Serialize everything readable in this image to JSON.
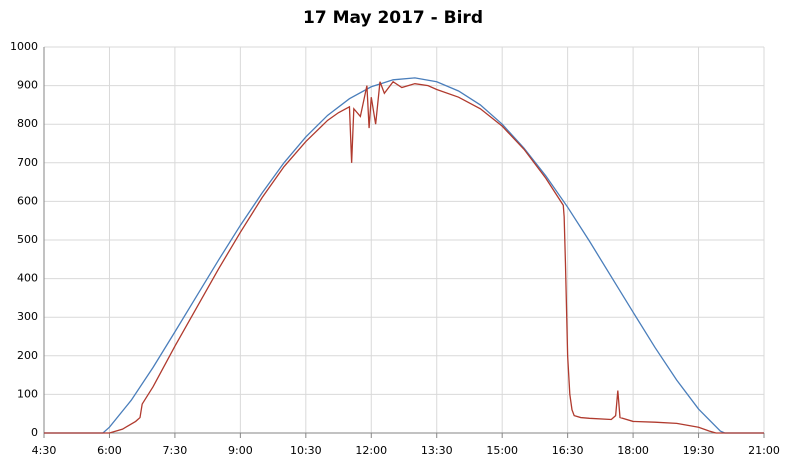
{
  "chart_data": {
    "type": "line",
    "title": "17 May 2017 - Bird",
    "series": [
      {
        "color": "#4a7ebb",
        "x": [
          4.5,
          5.5,
          5.85,
          6.0,
          6.5,
          7.0,
          7.5,
          8.0,
          8.5,
          9.0,
          9.5,
          10.0,
          10.5,
          11.0,
          11.5,
          12.0,
          12.5,
          13.0,
          13.5,
          14.0,
          14.5,
          15.0,
          15.5,
          16.0,
          16.5,
          17.0,
          17.5,
          18.0,
          18.5,
          19.0,
          19.5,
          20.0,
          20.1,
          21.0
        ],
        "values": [
          0,
          0,
          0,
          15,
          85,
          170,
          262,
          355,
          448,
          538,
          622,
          700,
          767,
          823,
          866,
          897,
          915,
          920,
          910,
          886,
          850,
          800,
          738,
          666,
          585,
          497,
          405,
          313,
          222,
          137,
          62,
          5,
          0,
          0
        ]
      },
      {
        "color": "#b03a2e",
        "x": [
          4.5,
          6.0,
          6.3,
          6.6,
          6.7,
          6.75,
          7.0,
          7.5,
          8.0,
          8.5,
          9.0,
          9.5,
          10.0,
          10.5,
          11.0,
          11.25,
          11.5,
          11.55,
          11.6,
          11.75,
          11.9,
          11.95,
          12.0,
          12.1,
          12.2,
          12.3,
          12.5,
          12.7,
          13.0,
          13.3,
          13.5,
          14.0,
          14.5,
          15.0,
          15.5,
          16.0,
          16.4,
          16.42,
          16.45,
          16.5,
          16.55,
          16.6,
          16.65,
          16.8,
          17.0,
          17.5,
          17.6,
          17.65,
          17.7,
          18.0,
          18.5,
          19.0,
          19.5,
          19.75,
          19.9,
          21.0
        ],
        "values": [
          0,
          0,
          10,
          30,
          40,
          75,
          120,
          225,
          325,
          425,
          520,
          610,
          690,
          755,
          810,
          830,
          845,
          700,
          840,
          820,
          900,
          790,
          870,
          800,
          910,
          880,
          910,
          895,
          905,
          900,
          890,
          870,
          840,
          795,
          735,
          660,
          590,
          560,
          440,
          200,
          100,
          60,
          45,
          40,
          38,
          35,
          45,
          110,
          40,
          30,
          28,
          25,
          15,
          5,
          0,
          0
        ]
      }
    ],
    "xlim": [
      4.5,
      21
    ],
    "xticks": [
      {
        "value": 4.5,
        "label": "4:30"
      },
      {
        "value": 6,
        "label": "6:00"
      },
      {
        "value": 7.5,
        "label": "7:30"
      },
      {
        "value": 9,
        "label": "9:00"
      },
      {
        "value": 10.5,
        "label": "10:30"
      },
      {
        "value": 12,
        "label": "12:00"
      },
      {
        "value": 13.5,
        "label": "13:30"
      },
      {
        "value": 15,
        "label": "15:00"
      },
      {
        "value": 16.5,
        "label": "16:30"
      },
      {
        "value": 18,
        "label": "18:00"
      },
      {
        "value": 19.5,
        "label": "19:30"
      },
      {
        "value": 21,
        "label": "21:00"
      }
    ],
    "ylim": [
      0,
      1000
    ],
    "yticks": [
      0,
      100,
      200,
      300,
      400,
      500,
      600,
      700,
      800,
      900,
      1000
    ],
    "grid": true
  }
}
